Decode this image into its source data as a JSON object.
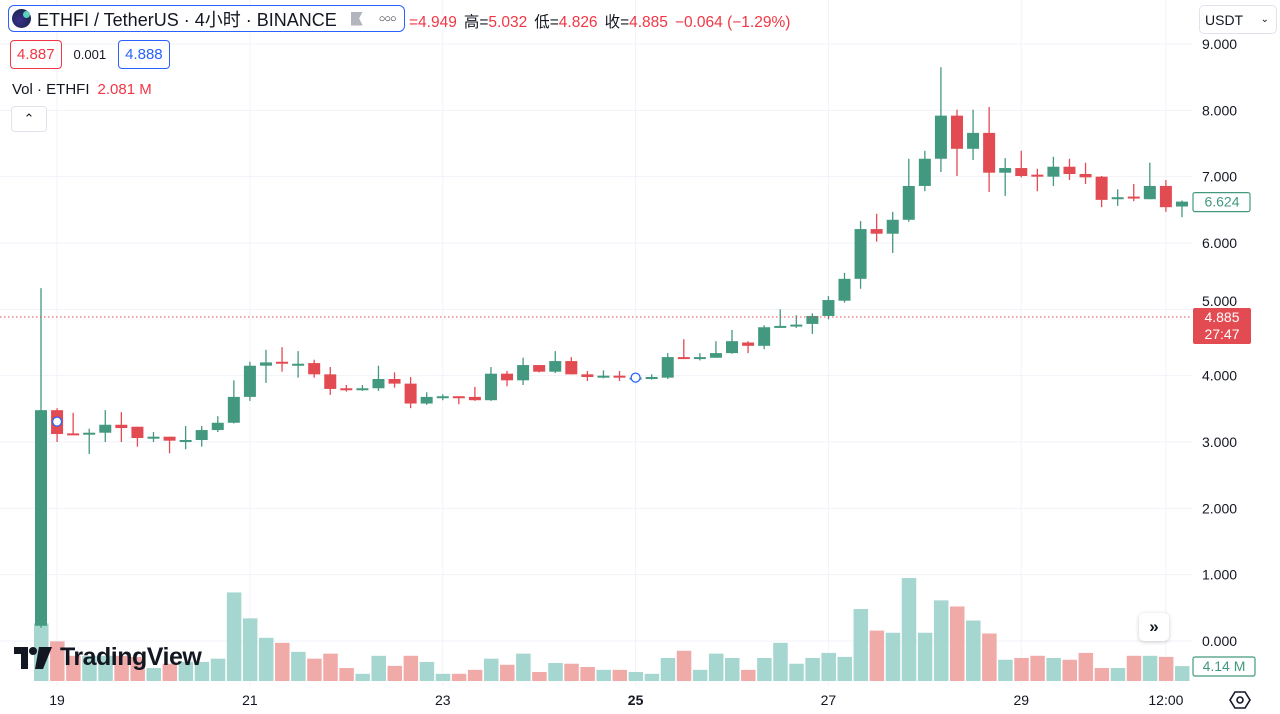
{
  "header": {
    "symbol": "ETHFI / TetherUS · 4小时 · BINANCE",
    "flag_icon": "flag-icon",
    "more_icon": "more-dots-icon",
    "open_value": "=4.949",
    "high_label": "高=",
    "high_value": "5.032",
    "low_label": "低=",
    "low_value": "4.826",
    "close_label": "收=",
    "close_value": "4.885",
    "change": "−0.064 (−1.29%)"
  },
  "quote": {
    "bid": "4.887",
    "spread": "0.001",
    "ask": "4.888"
  },
  "volume_legend": {
    "label": "Vol · ETHFI",
    "value": "2.081 M"
  },
  "currency_selector": "USDT",
  "logo_text": "TradingView",
  "price_labels": {
    "last_visible": "6.624",
    "current": "4.885",
    "countdown": "27:47",
    "volume": "4.14 M"
  },
  "colors": {
    "up": "#42997f",
    "down": "#e34b52",
    "up_volume": "#a5d6d0",
    "down_volume": "#f0aaa8",
    "accent": "#2962ff",
    "grid": "#f0f3fa"
  },
  "chart_data": {
    "type": "candlestick",
    "interval": "4小时",
    "y_ticks": [
      "0.000",
      "1.000",
      "2.000",
      "3.000",
      "4.000",
      "5.000",
      "6.000",
      "7.000",
      "8.000",
      "9.000"
    ],
    "ylim": [
      0,
      9
    ],
    "x_ticks": [
      {
        "label": "19",
        "candle": 1,
        "bold": false
      },
      {
        "label": "21",
        "candle": 13,
        "bold": false
      },
      {
        "label": "23",
        "candle": 25,
        "bold": false
      },
      {
        "label": "25",
        "candle": 37,
        "bold": true
      },
      {
        "label": "27",
        "candle": 49,
        "bold": false
      },
      {
        "label": "29",
        "candle": 61,
        "bold": false
      },
      {
        "label": "12:00",
        "candle": 70,
        "bold": false
      }
    ],
    "grid": true,
    "current_price_line": 4.885,
    "markers_at_candles": [
      1,
      37
    ],
    "ohlc": [
      [
        0.23,
        5.32,
        0.2,
        3.48
      ],
      [
        3.48,
        3.51,
        3.0,
        3.12
      ],
      [
        3.13,
        3.44,
        3.11,
        3.12
      ],
      [
        3.12,
        3.2,
        2.82,
        3.14
      ],
      [
        3.14,
        3.48,
        3.0,
        3.26
      ],
      [
        3.26,
        3.45,
        3.0,
        3.21
      ],
      [
        3.23,
        3.23,
        2.93,
        3.06
      ],
      [
        3.07,
        3.15,
        3.0,
        3.08
      ],
      [
        3.08,
        3.08,
        2.83,
        3.02
      ],
      [
        3.02,
        3.24,
        2.89,
        3.03
      ],
      [
        3.03,
        3.24,
        2.93,
        3.18
      ],
      [
        3.18,
        3.39,
        3.15,
        3.29
      ],
      [
        3.29,
        3.93,
        3.28,
        3.68
      ],
      [
        3.68,
        4.21,
        3.62,
        4.15
      ],
      [
        4.15,
        4.39,
        3.89,
        4.2
      ],
      [
        4.21,
        4.43,
        4.06,
        4.18
      ],
      [
        4.17,
        4.37,
        3.97,
        4.18
      ],
      [
        4.19,
        4.24,
        3.97,
        4.02
      ],
      [
        4.02,
        4.13,
        3.71,
        3.8
      ],
      [
        3.81,
        3.86,
        3.76,
        3.8
      ],
      [
        3.8,
        3.86,
        3.77,
        3.81
      ],
      [
        3.81,
        4.15,
        3.77,
        3.95
      ],
      [
        3.95,
        4.05,
        3.82,
        3.88
      ],
      [
        3.88,
        3.98,
        3.51,
        3.58
      ],
      [
        3.58,
        3.75,
        3.56,
        3.68
      ],
      [
        3.68,
        3.72,
        3.63,
        3.69
      ],
      [
        3.69,
        3.69,
        3.57,
        3.68
      ],
      [
        3.68,
        3.83,
        3.62,
        3.63
      ],
      [
        3.63,
        4.13,
        3.62,
        4.03
      ],
      [
        4.03,
        4.07,
        3.84,
        3.93
      ],
      [
        3.93,
        4.27,
        3.86,
        4.16
      ],
      [
        4.16,
        4.16,
        4.05,
        4.06
      ],
      [
        4.06,
        4.37,
        4.04,
        4.22
      ],
      [
        4.22,
        4.28,
        4.02,
        4.02
      ],
      [
        4.02,
        4.07,
        3.92,
        3.98
      ],
      [
        3.99,
        4.08,
        3.96,
        4.0
      ],
      [
        4.0,
        4.07,
        3.92,
        3.99
      ],
      [
        3.97,
        3.99,
        3.95,
        3.97
      ],
      [
        3.95,
        4.02,
        3.94,
        3.98
      ],
      [
        3.97,
        4.34,
        3.95,
        4.28
      ],
      [
        4.28,
        4.55,
        4.25,
        4.25
      ],
      [
        4.27,
        4.34,
        4.23,
        4.28
      ],
      [
        4.27,
        4.52,
        4.27,
        4.34
      ],
      [
        4.34,
        4.69,
        4.33,
        4.52
      ],
      [
        4.5,
        4.52,
        4.34,
        4.45
      ],
      [
        4.45,
        4.76,
        4.4,
        4.73
      ],
      [
        4.74,
        5.0,
        4.72,
        4.75
      ],
      [
        4.75,
        4.91,
        4.72,
        4.77
      ],
      [
        4.78,
        4.94,
        4.63,
        4.9
      ],
      [
        4.9,
        5.2,
        4.85,
        5.14
      ],
      [
        5.13,
        5.55,
        5.1,
        5.46
      ],
      [
        5.46,
        6.33,
        5.31,
        6.21
      ],
      [
        6.21,
        6.44,
        6.02,
        6.14
      ],
      [
        6.14,
        6.47,
        5.85,
        6.35
      ],
      [
        6.35,
        7.27,
        6.32,
        6.86
      ],
      [
        6.86,
        7.39,
        6.78,
        7.27
      ],
      [
        7.27,
        8.65,
        7.07,
        7.92
      ],
      [
        7.92,
        8.01,
        7.01,
        7.42
      ],
      [
        7.42,
        8.01,
        7.25,
        7.66
      ],
      [
        7.66,
        8.05,
        6.77,
        7.06
      ],
      [
        7.06,
        7.28,
        6.71,
        7.13
      ],
      [
        7.13,
        7.39,
        6.99,
        7.01
      ],
      [
        7.03,
        7.12,
        6.78,
        7.02
      ],
      [
        7.0,
        7.3,
        6.86,
        7.15
      ],
      [
        7.15,
        7.27,
        6.95,
        7.04
      ],
      [
        7.04,
        7.21,
        6.89,
        6.99
      ],
      [
        7.0,
        7.01,
        6.54,
        6.65
      ],
      [
        6.66,
        6.81,
        6.56,
        6.69
      ],
      [
        6.7,
        6.89,
        6.63,
        6.69
      ],
      [
        6.66,
        7.21,
        6.66,
        6.86
      ],
      [
        6.86,
        6.95,
        6.47,
        6.54
      ],
      [
        6.55,
        6.64,
        6.39,
        6.624
      ]
    ],
    "volume_millions": [
      16,
      11,
      7,
      7,
      7,
      7,
      6.7,
      3.6,
      4.8,
      5.3,
      5.3,
      6.2,
      24.6,
      17.4,
      12,
      10.6,
      8.1,
      6.2,
      7.6,
      3.6,
      2,
      7,
      4.2,
      7,
      5.3,
      2,
      2,
      3.1,
      6.2,
      4.5,
      7.6,
      2.5,
      5,
      4.8,
      3.9,
      3.1,
      3.1,
      2.5,
      2,
      6.4,
      8.4,
      3.1,
      7.6,
      6.4,
      3.1,
      6.4,
      10.6,
      4.8,
      6.4,
      7.8,
      6.7,
      20,
      14,
      13.4,
      28.6,
      13.4,
      22.4,
      20.7,
      16.8,
      13.2,
      5.9,
      6.4,
      7,
      6.4,
      5.9,
      7.8,
      3.6,
      3.6,
      7,
      7,
      6.7,
      4.14
    ]
  }
}
